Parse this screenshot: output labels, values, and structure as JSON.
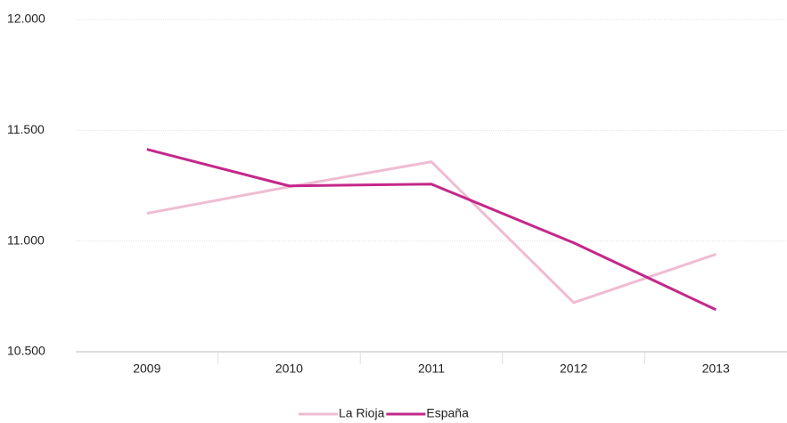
{
  "chart_data": {
    "type": "line",
    "categories": [
      "2009",
      "2010",
      "2011",
      "2012",
      "2013"
    ],
    "series": [
      {
        "name": "La Rioja",
        "color": "#efbcd3",
        "values": [
          11125,
          11245,
          11358,
          10722,
          10940
        ]
      },
      {
        "name": "España",
        "color": "#c4288a",
        "values": [
          11414,
          11249,
          11257,
          10992,
          10690
        ]
      }
    ],
    "ylim": [
      10500,
      12000
    ],
    "yticks": [
      {
        "value": 10500,
        "label": "10.500"
      },
      {
        "value": 11000,
        "label": "11.000"
      },
      {
        "value": 11500,
        "label": "11.500"
      },
      {
        "value": 12000,
        "label": "12.000"
      }
    ],
    "grid": true,
    "legend": "bottom"
  }
}
